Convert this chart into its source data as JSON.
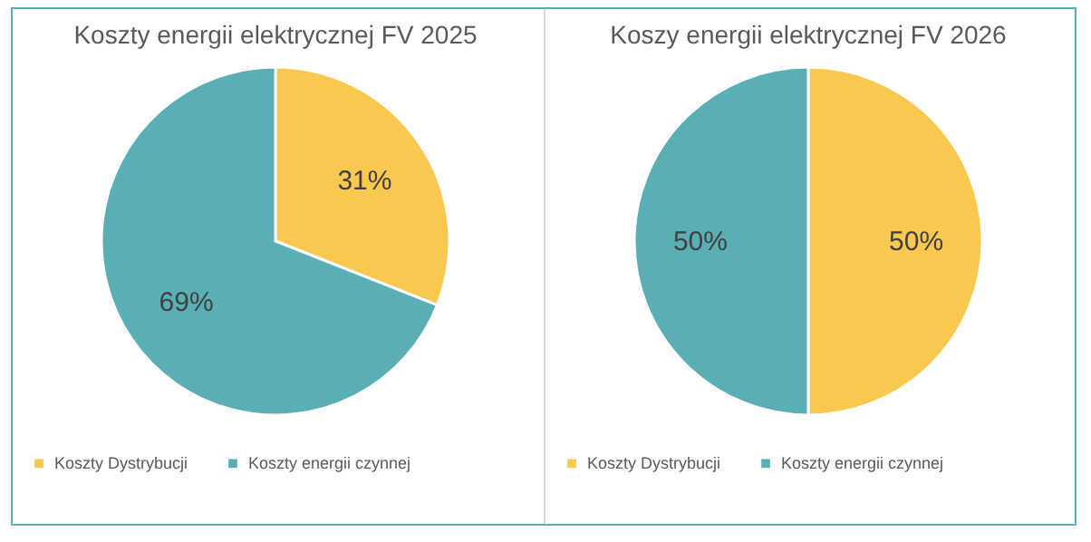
{
  "chart_data": [
    {
      "type": "pie",
      "title": "Koszty energii elektrycznej FV 2025",
      "categories": [
        "Koszty Dystrybucji",
        "Koszty energii czynnej"
      ],
      "values": [
        31,
        69
      ],
      "colors": [
        "#fac84f",
        "#5aafb6"
      ],
      "value_labels": [
        "31%",
        "69%"
      ],
      "legend": "bottom"
    },
    {
      "type": "pie",
      "title": "Koszy energii elektrycznej FV 2026",
      "categories": [
        "Koszty Dystrybucji",
        "Koszty energii czynnej"
      ],
      "values": [
        50,
        50
      ],
      "colors": [
        "#fac84f",
        "#5aafb6"
      ],
      "value_labels": [
        "50%",
        "50%"
      ],
      "legend": "bottom"
    }
  ]
}
